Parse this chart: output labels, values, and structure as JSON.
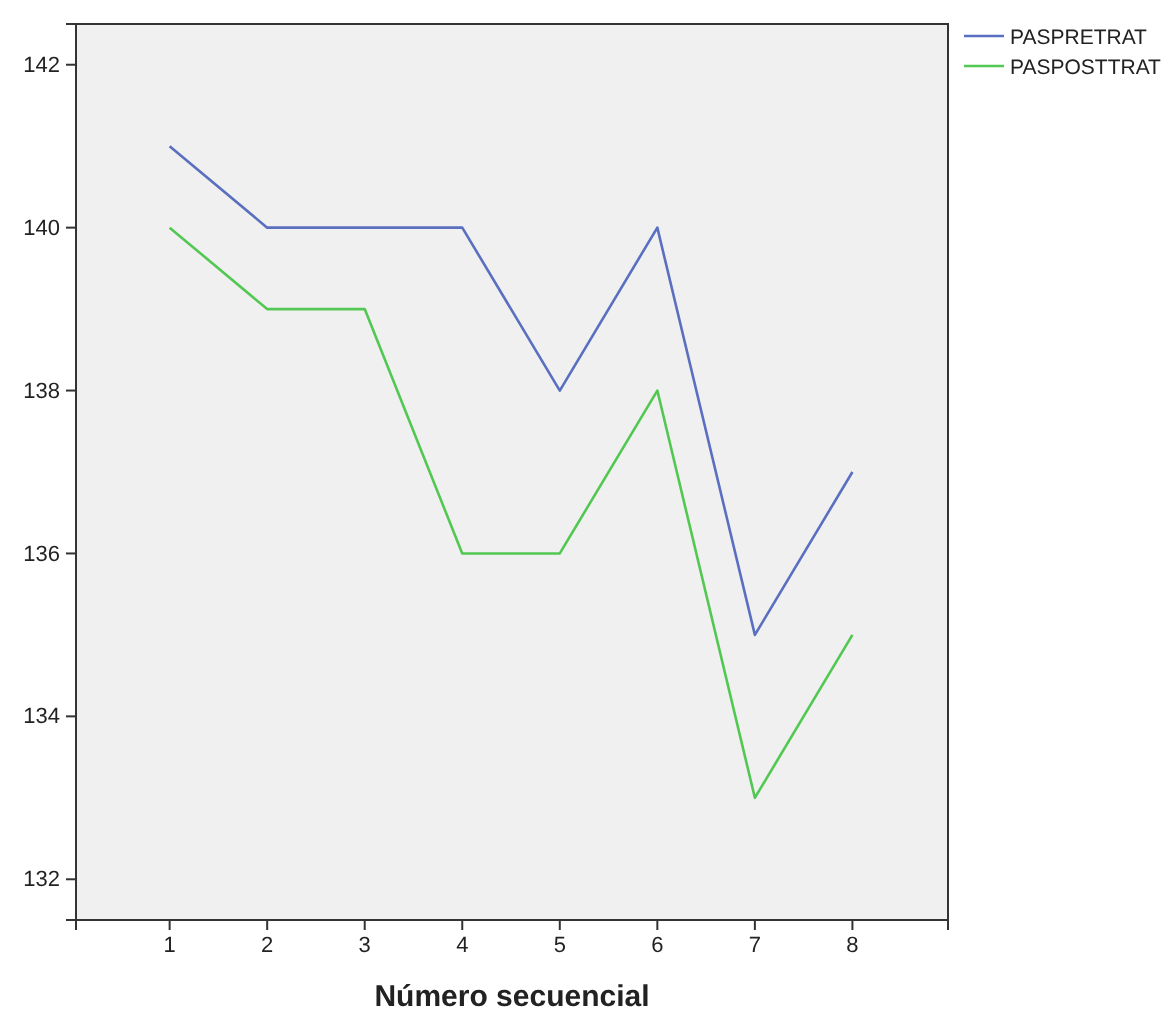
{
  "chart_data": {
    "type": "line",
    "xlabel": "Número secuencial",
    "x": [
      1,
      2,
      3,
      4,
      5,
      6,
      7,
      8
    ],
    "xlim": [
      0.04,
      8.98
    ],
    "xticks": [
      1,
      2,
      3,
      4,
      5,
      6,
      7,
      8
    ],
    "ylim": [
      131.5,
      142.5
    ],
    "yticks": [
      132,
      134,
      136,
      138,
      140,
      142
    ],
    "series": [
      {
        "name": "PASPRETRAT",
        "color": "#5a6fc0",
        "values": [
          141,
          140,
          140,
          140,
          138,
          140,
          135,
          137
        ]
      },
      {
        "name": "PASPOSTTRAT",
        "color": "#52c852",
        "values": [
          140,
          139,
          139,
          136,
          136,
          138,
          133,
          135
        ]
      }
    ],
    "grid": false,
    "legend": "top right",
    "marker": "none",
    "line_style": "solid"
  }
}
